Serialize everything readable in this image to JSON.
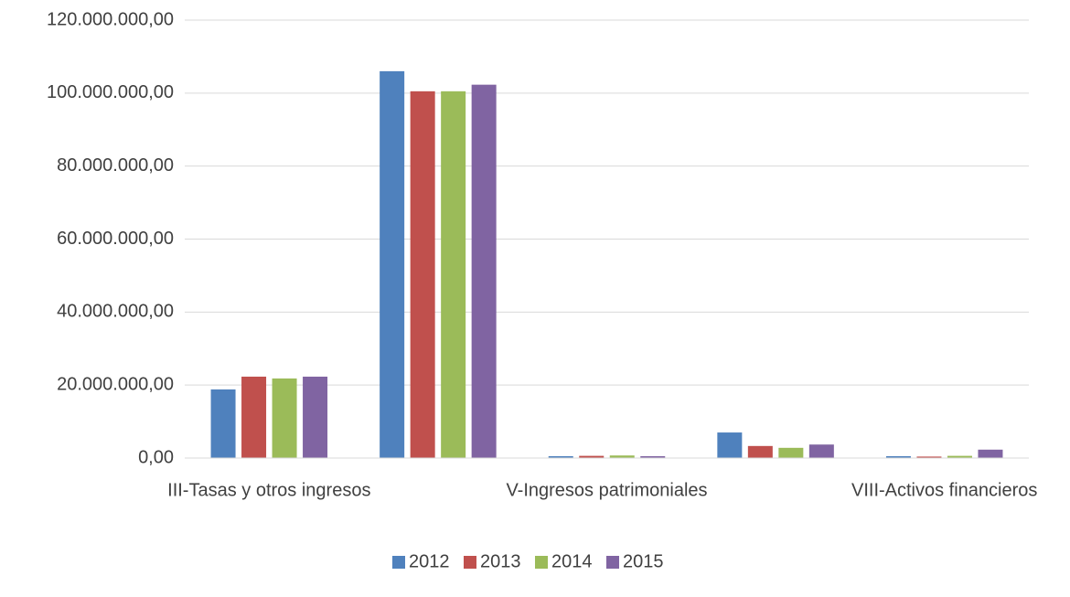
{
  "chart_data": {
    "type": "bar",
    "categories": [
      "III-Tasas y otros ingresos",
      null,
      "V-Ingresos patrimoniales",
      null,
      "VIII-Activos financieros"
    ],
    "series": [
      {
        "name": "2012",
        "color": "#4f81bd",
        "values": [
          18800000,
          106000000,
          500000,
          7000000,
          500000
        ]
      },
      {
        "name": "2013",
        "color": "#c0504d",
        "values": [
          22300000,
          100500000,
          600000,
          3300000,
          400000
        ]
      },
      {
        "name": "2014",
        "color": "#9bbb59",
        "values": [
          21800000,
          100500000,
          700000,
          2800000,
          600000
        ]
      },
      {
        "name": "2015",
        "color": "#8064a2",
        "values": [
          22300000,
          102300000,
          500000,
          3700000,
          2300000
        ]
      }
    ],
    "ylim": [
      0,
      120000000
    ],
    "yticks": [
      {
        "value": 0,
        "label": "0,00"
      },
      {
        "value": 20000000,
        "label": "20.000.000,00"
      },
      {
        "value": 40000000,
        "label": "40.000.000,00"
      },
      {
        "value": 60000000,
        "label": "60.000.000,00"
      },
      {
        "value": 80000000,
        "label": "80.000.000,00"
      },
      {
        "value": 100000000,
        "label": "100.000.000,00"
      },
      {
        "value": 120000000,
        "label": "120.000.000,00"
      }
    ],
    "grid": true,
    "legend": "bottom"
  }
}
